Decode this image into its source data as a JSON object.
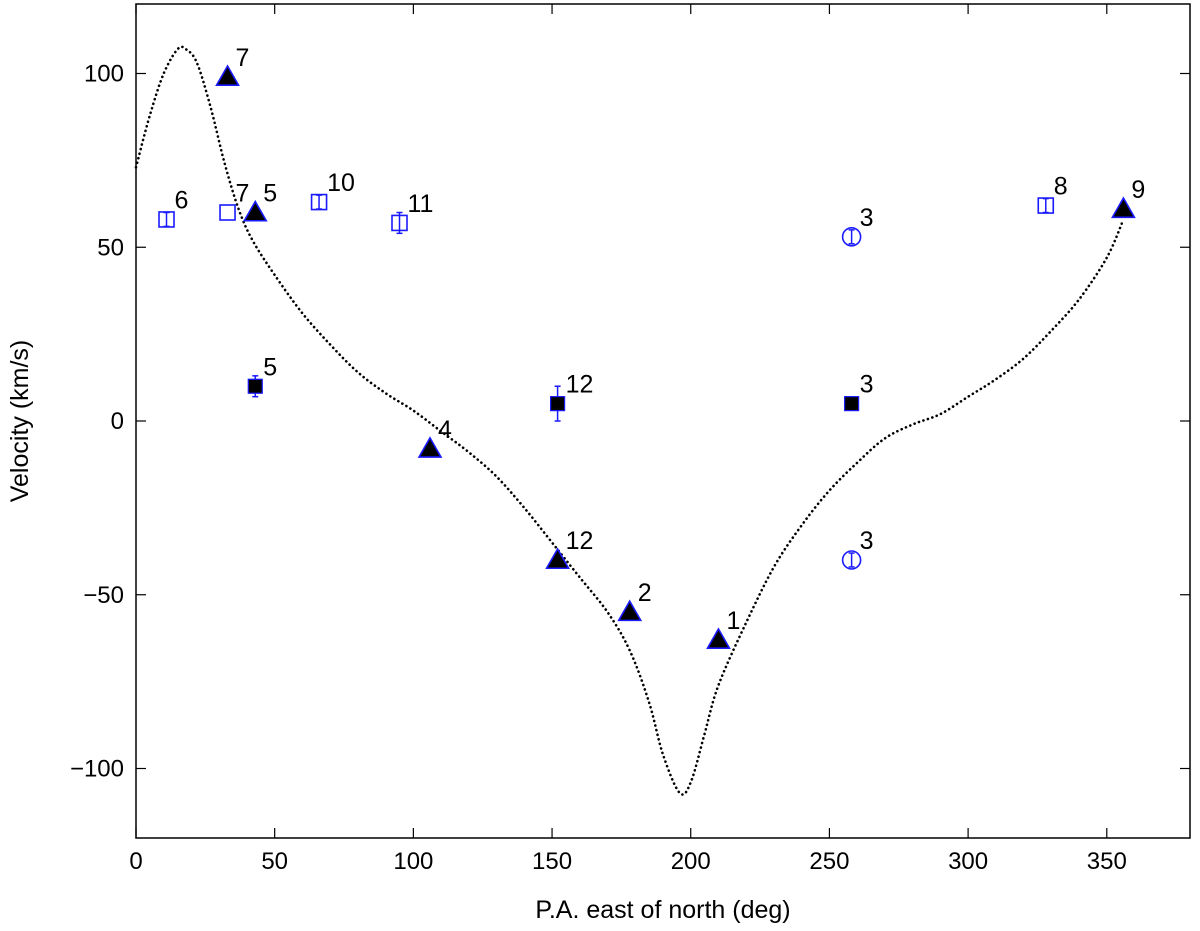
{
  "chart_data": {
    "type": "scatter",
    "title": "",
    "xlabel": "P.A. east of north (deg)",
    "ylabel": "Velocity (km/s)",
    "xlim": [
      0,
      380
    ],
    "ylim": [
      -120,
      120
    ],
    "xticks": [
      0,
      50,
      100,
      150,
      200,
      250,
      300,
      350
    ],
    "yticks": [
      -100,
      -50,
      0,
      50,
      100
    ],
    "xtick_labels": [
      "0",
      "50",
      "100",
      "150",
      "200",
      "250",
      "300",
      "350"
    ],
    "ytick_labels": [
      "−100",
      "−50",
      "0",
      "50",
      "100"
    ],
    "grid": false,
    "legend": "none",
    "colors": {
      "marker_edge": "#1a1aff",
      "filled": "#000000",
      "curve": "#000000"
    },
    "model_curve": {
      "style": "dotted",
      "points": [
        [
          0,
          73
        ],
        [
          5,
          88
        ],
        [
          10,
          100
        ],
        [
          15,
          107
        ],
        [
          18,
          107
        ],
        [
          22,
          103
        ],
        [
          27,
          90
        ],
        [
          32,
          74
        ],
        [
          37,
          61
        ],
        [
          42,
          52
        ],
        [
          50,
          42
        ],
        [
          60,
          31
        ],
        [
          70,
          22
        ],
        [
          80,
          14
        ],
        [
          90,
          8
        ],
        [
          100,
          3
        ],
        [
          110,
          -3
        ],
        [
          120,
          -9
        ],
        [
          130,
          -16
        ],
        [
          140,
          -25
        ],
        [
          150,
          -35
        ],
        [
          160,
          -45
        ],
        [
          170,
          -55
        ],
        [
          178,
          -66
        ],
        [
          185,
          -81
        ],
        [
          190,
          -96
        ],
        [
          196,
          -107
        ],
        [
          200,
          -104
        ],
        [
          205,
          -90
        ],
        [
          210,
          -76
        ],
        [
          220,
          -58
        ],
        [
          230,
          -42
        ],
        [
          240,
          -30
        ],
        [
          250,
          -20
        ],
        [
          260,
          -12
        ],
        [
          270,
          -5
        ],
        [
          280,
          -1
        ],
        [
          290,
          2
        ],
        [
          300,
          7
        ],
        [
          310,
          12
        ],
        [
          320,
          18
        ],
        [
          330,
          26
        ],
        [
          340,
          35
        ],
        [
          350,
          47
        ],
        [
          356,
          58
        ]
      ]
    },
    "series": [
      {
        "marker": "triangle-filled",
        "points": [
          {
            "x": 33,
            "y": 99,
            "label": "7"
          },
          {
            "x": 43,
            "y": 60,
            "label": "5"
          },
          {
            "x": 106,
            "y": -8,
            "label": "4"
          },
          {
            "x": 152,
            "y": -40,
            "label": "12"
          },
          {
            "x": 178,
            "y": -55,
            "label": "2"
          },
          {
            "x": 210,
            "y": -63,
            "label": "1"
          },
          {
            "x": 356,
            "y": 61,
            "label": "9",
            "err": 2
          }
        ]
      },
      {
        "marker": "square-filled",
        "points": [
          {
            "x": 43,
            "y": 10,
            "label": "5",
            "err": 3
          },
          {
            "x": 152,
            "y": 5,
            "label": "12",
            "err": 5
          },
          {
            "x": 258,
            "y": 5,
            "label": "3",
            "err": 1
          }
        ]
      },
      {
        "marker": "square-open",
        "points": [
          {
            "x": 11,
            "y": 58,
            "label": "6",
            "err": 2
          },
          {
            "x": 33,
            "y": 60,
            "label": "7"
          },
          {
            "x": 66,
            "y": 63,
            "label": "10",
            "err": 2
          },
          {
            "x": 95,
            "y": 57,
            "label": "11",
            "err": 3
          },
          {
            "x": 328,
            "y": 62,
            "label": "8",
            "err": 2
          }
        ]
      },
      {
        "marker": "circle-open",
        "points": [
          {
            "x": 258,
            "y": 53,
            "label": "3",
            "err": 2
          },
          {
            "x": 258,
            "y": -40,
            "label": "3",
            "err": 2
          }
        ]
      }
    ]
  }
}
